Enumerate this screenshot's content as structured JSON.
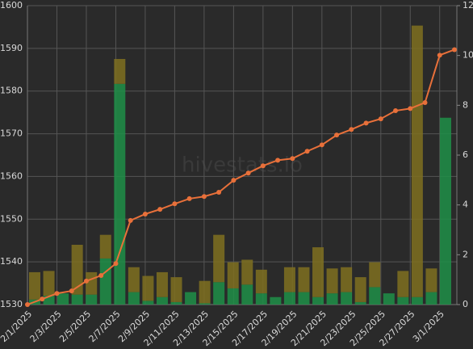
{
  "chart_data": {
    "type": "bar-line",
    "watermark": "hivestats.io",
    "categories": [
      "2/1/2025",
      null,
      "2/3/2025",
      null,
      "2/5/2025",
      null,
      "2/7/2025",
      null,
      "2/9/2025",
      null,
      "2/11/2025",
      null,
      "2/13/2025",
      null,
      "2/15/2025",
      null,
      "2/17/2025",
      null,
      "2/19/2025",
      null,
      "2/21/2025",
      null,
      "2/23/2025",
      null,
      "2/25/2025",
      null,
      "2/27/2025",
      null,
      "3/1/2025",
      null
    ],
    "series": [
      {
        "type": "line",
        "color": "#e8703a",
        "values": [
          1530.0,
          1531.3,
          1532.6,
          1533.2,
          1535.5,
          1536.8,
          1539.6,
          1549.7,
          1551.2,
          1552.3,
          1553.6,
          1554.8,
          1555.3,
          1556.3,
          1559.1,
          1560.8,
          1562.5,
          1563.8,
          1564.2,
          1565.9,
          1567.4,
          1569.7,
          1571.0,
          1572.5,
          1573.5,
          1575.4,
          1575.9,
          1577.3,
          1588.4,
          1589.7
        ]
      },
      {
        "type": "bar",
        "axis": "y2",
        "color": "#1f8f48",
        "values": [
          0.2,
          0.35,
          0.45,
          0.4,
          0.4,
          1.85,
          8.86,
          0.5,
          0.15,
          0.3,
          0.1,
          0.5,
          0.05,
          0.9,
          0.65,
          0.8,
          0.45,
          0.3,
          0.5,
          0.5,
          0.3,
          0.45,
          0.5,
          0.1,
          0.7,
          0.45,
          0.3,
          0.3,
          0.5,
          7.5
        ]
      },
      {
        "type": "bar",
        "axis": "y2",
        "color": "#7f7020",
        "values": [
          1.1,
          1.0,
          0,
          2.0,
          0.9,
          0.95,
          1.0,
          1.0,
          1.0,
          1.0,
          1.0,
          0,
          0.9,
          1.9,
          1.05,
          1.0,
          0.95,
          0,
          1.0,
          1.0,
          2.0,
          1.0,
          1.0,
          1.0,
          1.0,
          0,
          1.05,
          10.9,
          0.95,
          0
        ]
      }
    ],
    "ylim": [
      1530,
      1600
    ],
    "yticks": [
      1530,
      1540,
      1550,
      1560,
      1570,
      1580,
      1590,
      1600
    ],
    "y2lim": [
      0,
      12
    ],
    "y2ticks": [
      0,
      2,
      4,
      6,
      8,
      10,
      12
    ],
    "grid": true
  }
}
